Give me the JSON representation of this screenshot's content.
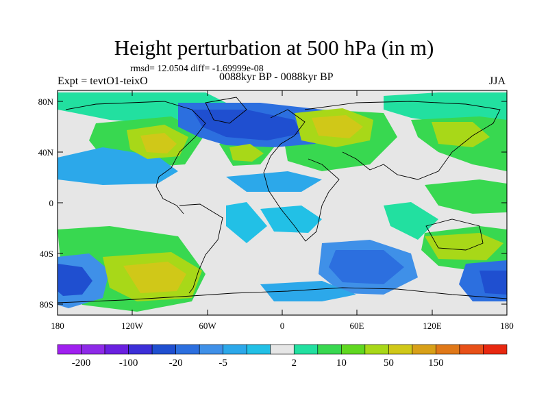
{
  "title": "Height perturbation at 500 hPa (in m)",
  "stats": "rmsd= 12.0504 diff= -1.69999e-08",
  "experiment": "Expt = tevtO1-teixO",
  "period": "0088kyr BP - 0088kyr BP",
  "season": "JJA",
  "lat_labels": [
    "80N",
    "40N",
    "0",
    "40S",
    "80S"
  ],
  "lon_labels": [
    "180",
    "120W",
    "60W",
    "0",
    "60E",
    "120E",
    "180"
  ],
  "colorbar": {
    "colors": [
      "#a020f0",
      "#8e2ae8",
      "#6a20e0",
      "#3c2fd8",
      "#1f4fd0",
      "#2c6fdf",
      "#3f90e8",
      "#2ca8ea",
      "#22c0e6",
      "#e6e6e6",
      "#22e0a0",
      "#38d850",
      "#60d820",
      "#a8d818",
      "#d0c818",
      "#d8a018",
      "#e07818",
      "#e85018",
      "#e82810"
    ],
    "labels": [
      "-200",
      "-100",
      "-20",
      "-5",
      "2",
      "10",
      "50",
      "150"
    ]
  }
}
